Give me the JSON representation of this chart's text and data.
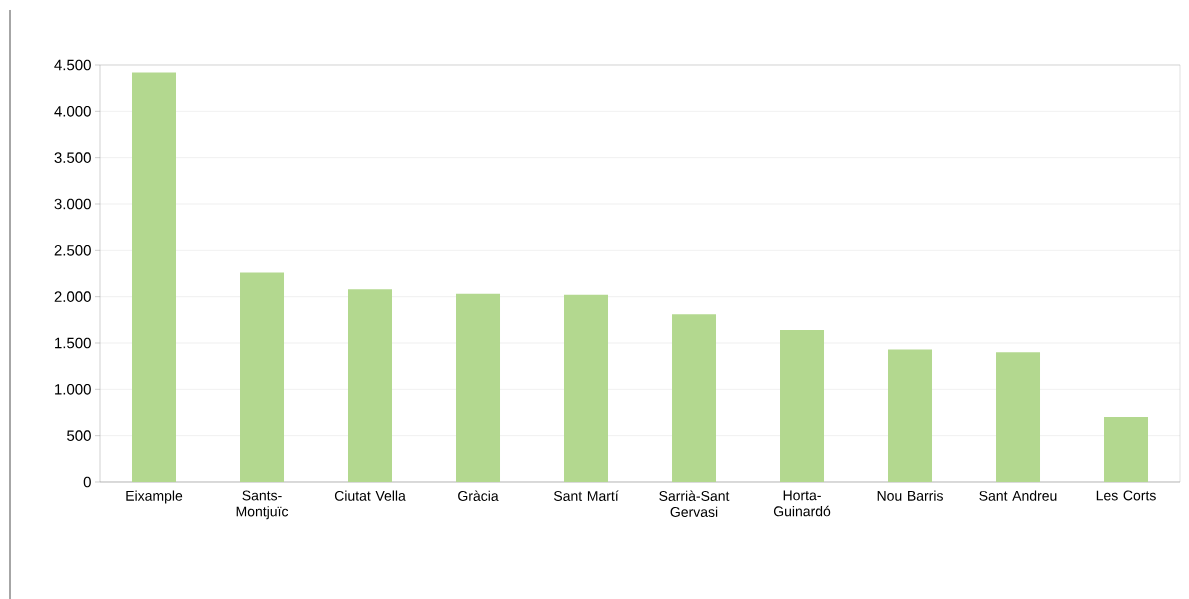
{
  "chart_data": {
    "type": "bar",
    "categories": [
      "Eixample",
      "Sants-Montjuïc",
      "Ciutat Vella",
      "Gràcia",
      "Sant Martí",
      "Sarrià-Sant Gervasi",
      "Horta-Guinardó",
      "Nou Barris",
      "Sant Andreu",
      "Les Corts"
    ],
    "values": [
      4420,
      2260,
      2080,
      2030,
      2020,
      1810,
      1640,
      1430,
      1400,
      700
    ],
    "color": "#b3d88f",
    "ylim": [
      0,
      4500
    ],
    "yticks": [
      0,
      500,
      {
        "value": 1000,
        "label": "1.000"
      },
      {
        "value": 1500,
        "label": "1.500"
      },
      {
        "value": 2000,
        "label": "2.000"
      },
      {
        "value": 2500,
        "label": "2.500"
      },
      {
        "value": 3000,
        "label": "3.000"
      },
      {
        "value": 3500,
        "label": "3.500"
      },
      {
        "value": 4000,
        "label": "4.000"
      },
      {
        "value": 4500,
        "label": "4.500"
      }
    ],
    "grid": "y"
  }
}
